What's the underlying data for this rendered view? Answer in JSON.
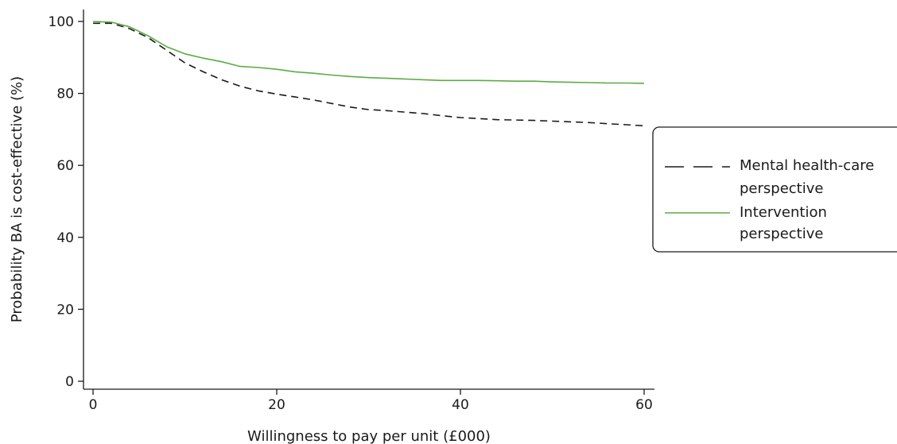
{
  "chart_data": {
    "type": "line",
    "title": "",
    "xlabel": "Willingness to pay per unit (£000)",
    "ylabel": "Probability BA is cost-effective (%)",
    "xlim": [
      0,
      61
    ],
    "ylim": [
      -2,
      103
    ],
    "xticks": [
      0,
      20,
      40,
      60
    ],
    "yticks": [
      0,
      20,
      40,
      60,
      80,
      100
    ],
    "grid": false,
    "legend_position": "right",
    "series": [
      {
        "name": "Mental health-care perspective",
        "color": "#1a1a1a",
        "dash": "dashed",
        "x": [
          0,
          2,
          4,
          6,
          8,
          10,
          12,
          14,
          16,
          18,
          20,
          22,
          24,
          26,
          28,
          30,
          32,
          34,
          36,
          38,
          40,
          42,
          44,
          46,
          48,
          50,
          52,
          54,
          56,
          58,
          60
        ],
        "y": [
          99.5,
          99.5,
          98,
          95.5,
          92,
          88.5,
          86,
          83.8,
          82,
          80.7,
          79.8,
          79,
          78.2,
          77.2,
          76.2,
          75.5,
          75.2,
          74.8,
          74.4,
          73.8,
          73.3,
          73,
          72.7,
          72.6,
          72.5,
          72.3,
          72.1,
          71.9,
          71.6,
          71.3,
          71
        ]
      },
      {
        "name": "Intervention perspective",
        "color": "#5aac44",
        "dash": "solid",
        "x": [
          0,
          2,
          4,
          6,
          8,
          10,
          12,
          14,
          16,
          18,
          20,
          22,
          24,
          26,
          28,
          30,
          32,
          34,
          36,
          38,
          40,
          42,
          44,
          46,
          48,
          50,
          52,
          54,
          56,
          58,
          60
        ],
        "y": [
          100,
          99.8,
          98.5,
          96,
          93,
          91,
          89.8,
          88.8,
          87.5,
          87.2,
          86.7,
          86,
          85.6,
          85.1,
          84.7,
          84.4,
          84.2,
          84,
          83.8,
          83.6,
          83.6,
          83.6,
          83.5,
          83.4,
          83.4,
          83.2,
          83.1,
          83,
          82.9,
          82.9,
          82.8
        ]
      }
    ],
    "legend_lines": [
      [
        "Mental health-care",
        "perspective"
      ],
      [
        "Intervention",
        "perspective"
      ]
    ]
  }
}
